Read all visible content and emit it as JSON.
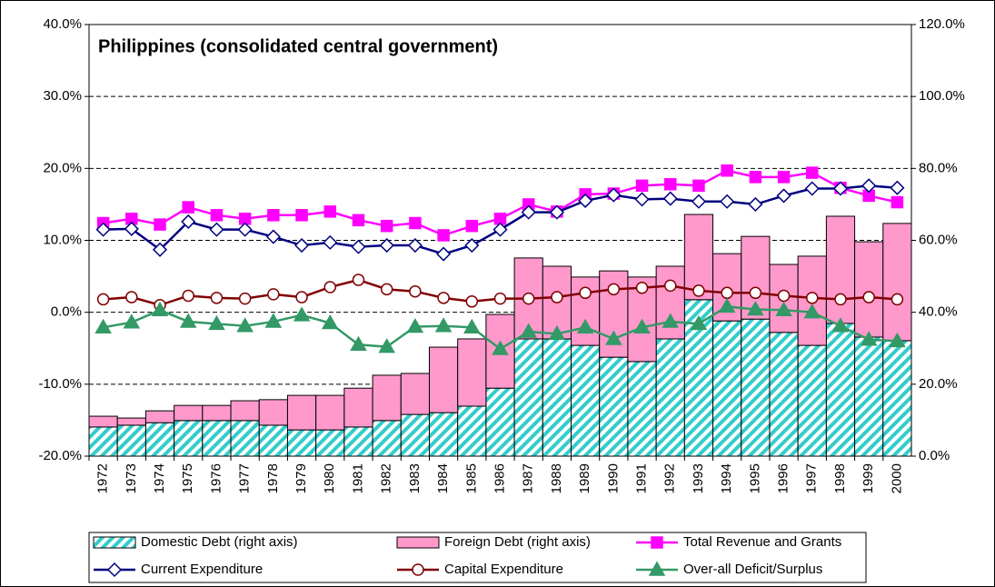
{
  "chart_data": {
    "type": "combo",
    "title": "Philippines (consolidated central government)",
    "categories": [
      "1972",
      "1973",
      "1974",
      "1975",
      "1976",
      "1977",
      "1978",
      "1979",
      "1980",
      "1981",
      "1982",
      "1983",
      "1984",
      "1985",
      "1986",
      "1987",
      "1988",
      "1989",
      "1990",
      "1991",
      "1992",
      "1993",
      "1994",
      "1995",
      "1996",
      "1997",
      "1998",
      "1999",
      "2000"
    ],
    "ylim": [
      -20,
      40
    ],
    "yticks": [
      {
        "value": -20,
        "label": "-20.0%"
      },
      {
        "value": -10,
        "label": "-10.0%"
      },
      {
        "value": 0,
        "label": "0.0%"
      },
      {
        "value": 10,
        "label": "10.0%"
      },
      {
        "value": 20,
        "label": "20.0%"
      },
      {
        "value": 30,
        "label": "30.0%"
      },
      {
        "value": 40,
        "label": "40.0%"
      }
    ],
    "y2lim": [
      0,
      120
    ],
    "y2ticks": [
      {
        "value": 0,
        "label": "0.0%"
      },
      {
        "value": 20,
        "label": "20.0%"
      },
      {
        "value": 40,
        "label": "40.0%"
      },
      {
        "value": 60,
        "label": "60.0%"
      },
      {
        "value": 80,
        "label": "80.0%"
      },
      {
        "value": 100,
        "label": "100.0%"
      },
      {
        "value": 120,
        "label": "120.0%"
      }
    ],
    "grid": true,
    "stacked": true,
    "legend": "bottom",
    "series": [
      {
        "name": "Domestic Debt (right axis)",
        "kind": "bar",
        "axis": "y2",
        "color": "#33cccc",
        "pattern": "hatch",
        "values": [
          8.1,
          8.6,
          9.3,
          9.9,
          9.9,
          9.9,
          8.6,
          7.3,
          7.3,
          8.1,
          9.9,
          11.6,
          12.1,
          13.9,
          18.9,
          32.6,
          32.6,
          30.8,
          27.5,
          26.3,
          32.6,
          43.5,
          37.6,
          38.1,
          34.4,
          30.8,
          36.9,
          33.1,
          32.1
        ]
      },
      {
        "name": "Foreign Debt (right axis)",
        "kind": "bar",
        "axis": "y2",
        "color": "#ff99cc",
        "values": [
          3.0,
          2.0,
          3.3,
          4.2,
          4.2,
          5.5,
          7.1,
          9.6,
          9.6,
          10.8,
          12.6,
          11.4,
          18.2,
          18.7,
          20.5,
          22.5,
          20.2,
          19.0,
          24.0,
          23.5,
          20.2,
          23.7,
          18.7,
          23.0,
          18.9,
          24.8,
          29.8,
          26.5,
          32.6
        ]
      },
      {
        "name": "Total Revenue and Grants",
        "kind": "line",
        "marker": "square",
        "color": "#ff00ff",
        "values": [
          12.4,
          13.0,
          12.2,
          14.6,
          13.5,
          13.0,
          13.5,
          13.5,
          14.0,
          12.8,
          12.0,
          12.4,
          10.7,
          12.0,
          13.0,
          15.0,
          14.0,
          16.4,
          16.5,
          17.6,
          17.8,
          17.6,
          19.7,
          18.8,
          18.8,
          19.4,
          17.3,
          16.2,
          15.3
        ]
      },
      {
        "name": "Current Expenditure",
        "kind": "line",
        "marker": "diamond",
        "color": "#000080",
        "values": [
          11.5,
          11.6,
          8.7,
          12.6,
          11.5,
          11.5,
          10.5,
          9.3,
          9.7,
          9.1,
          9.3,
          9.3,
          8.1,
          9.3,
          11.5,
          13.9,
          13.9,
          15.5,
          16.3,
          15.7,
          15.8,
          15.4,
          15.4,
          15.0,
          16.2,
          17.2,
          17.2,
          17.6,
          17.3
        ]
      },
      {
        "name": "Capital Expenditure",
        "kind": "line",
        "marker": "circle",
        "color": "#800000",
        "values": [
          1.8,
          2.1,
          1.0,
          2.3,
          2.0,
          1.9,
          2.5,
          2.1,
          3.5,
          4.5,
          3.2,
          2.9,
          2.0,
          1.5,
          1.9,
          1.9,
          2.1,
          2.7,
          3.2,
          3.4,
          3.7,
          3.0,
          2.7,
          2.7,
          2.3,
          2.0,
          1.8,
          2.1,
          1.8
        ]
      },
      {
        "name": "Over-all Deficit/Surplus",
        "kind": "line",
        "marker": "triangle",
        "color": "#339966",
        "values": [
          -2.1,
          -1.4,
          0.3,
          -1.3,
          -1.6,
          -1.9,
          -1.3,
          -0.4,
          -1.5,
          -4.5,
          -4.8,
          -2.0,
          -1.9,
          -2.1,
          -5.1,
          -2.7,
          -3.0,
          -2.1,
          -3.7,
          -2.1,
          -1.3,
          -1.6,
          0.8,
          0.4,
          0.3,
          0.0,
          -1.9,
          -3.8,
          -4.0
        ]
      }
    ]
  }
}
